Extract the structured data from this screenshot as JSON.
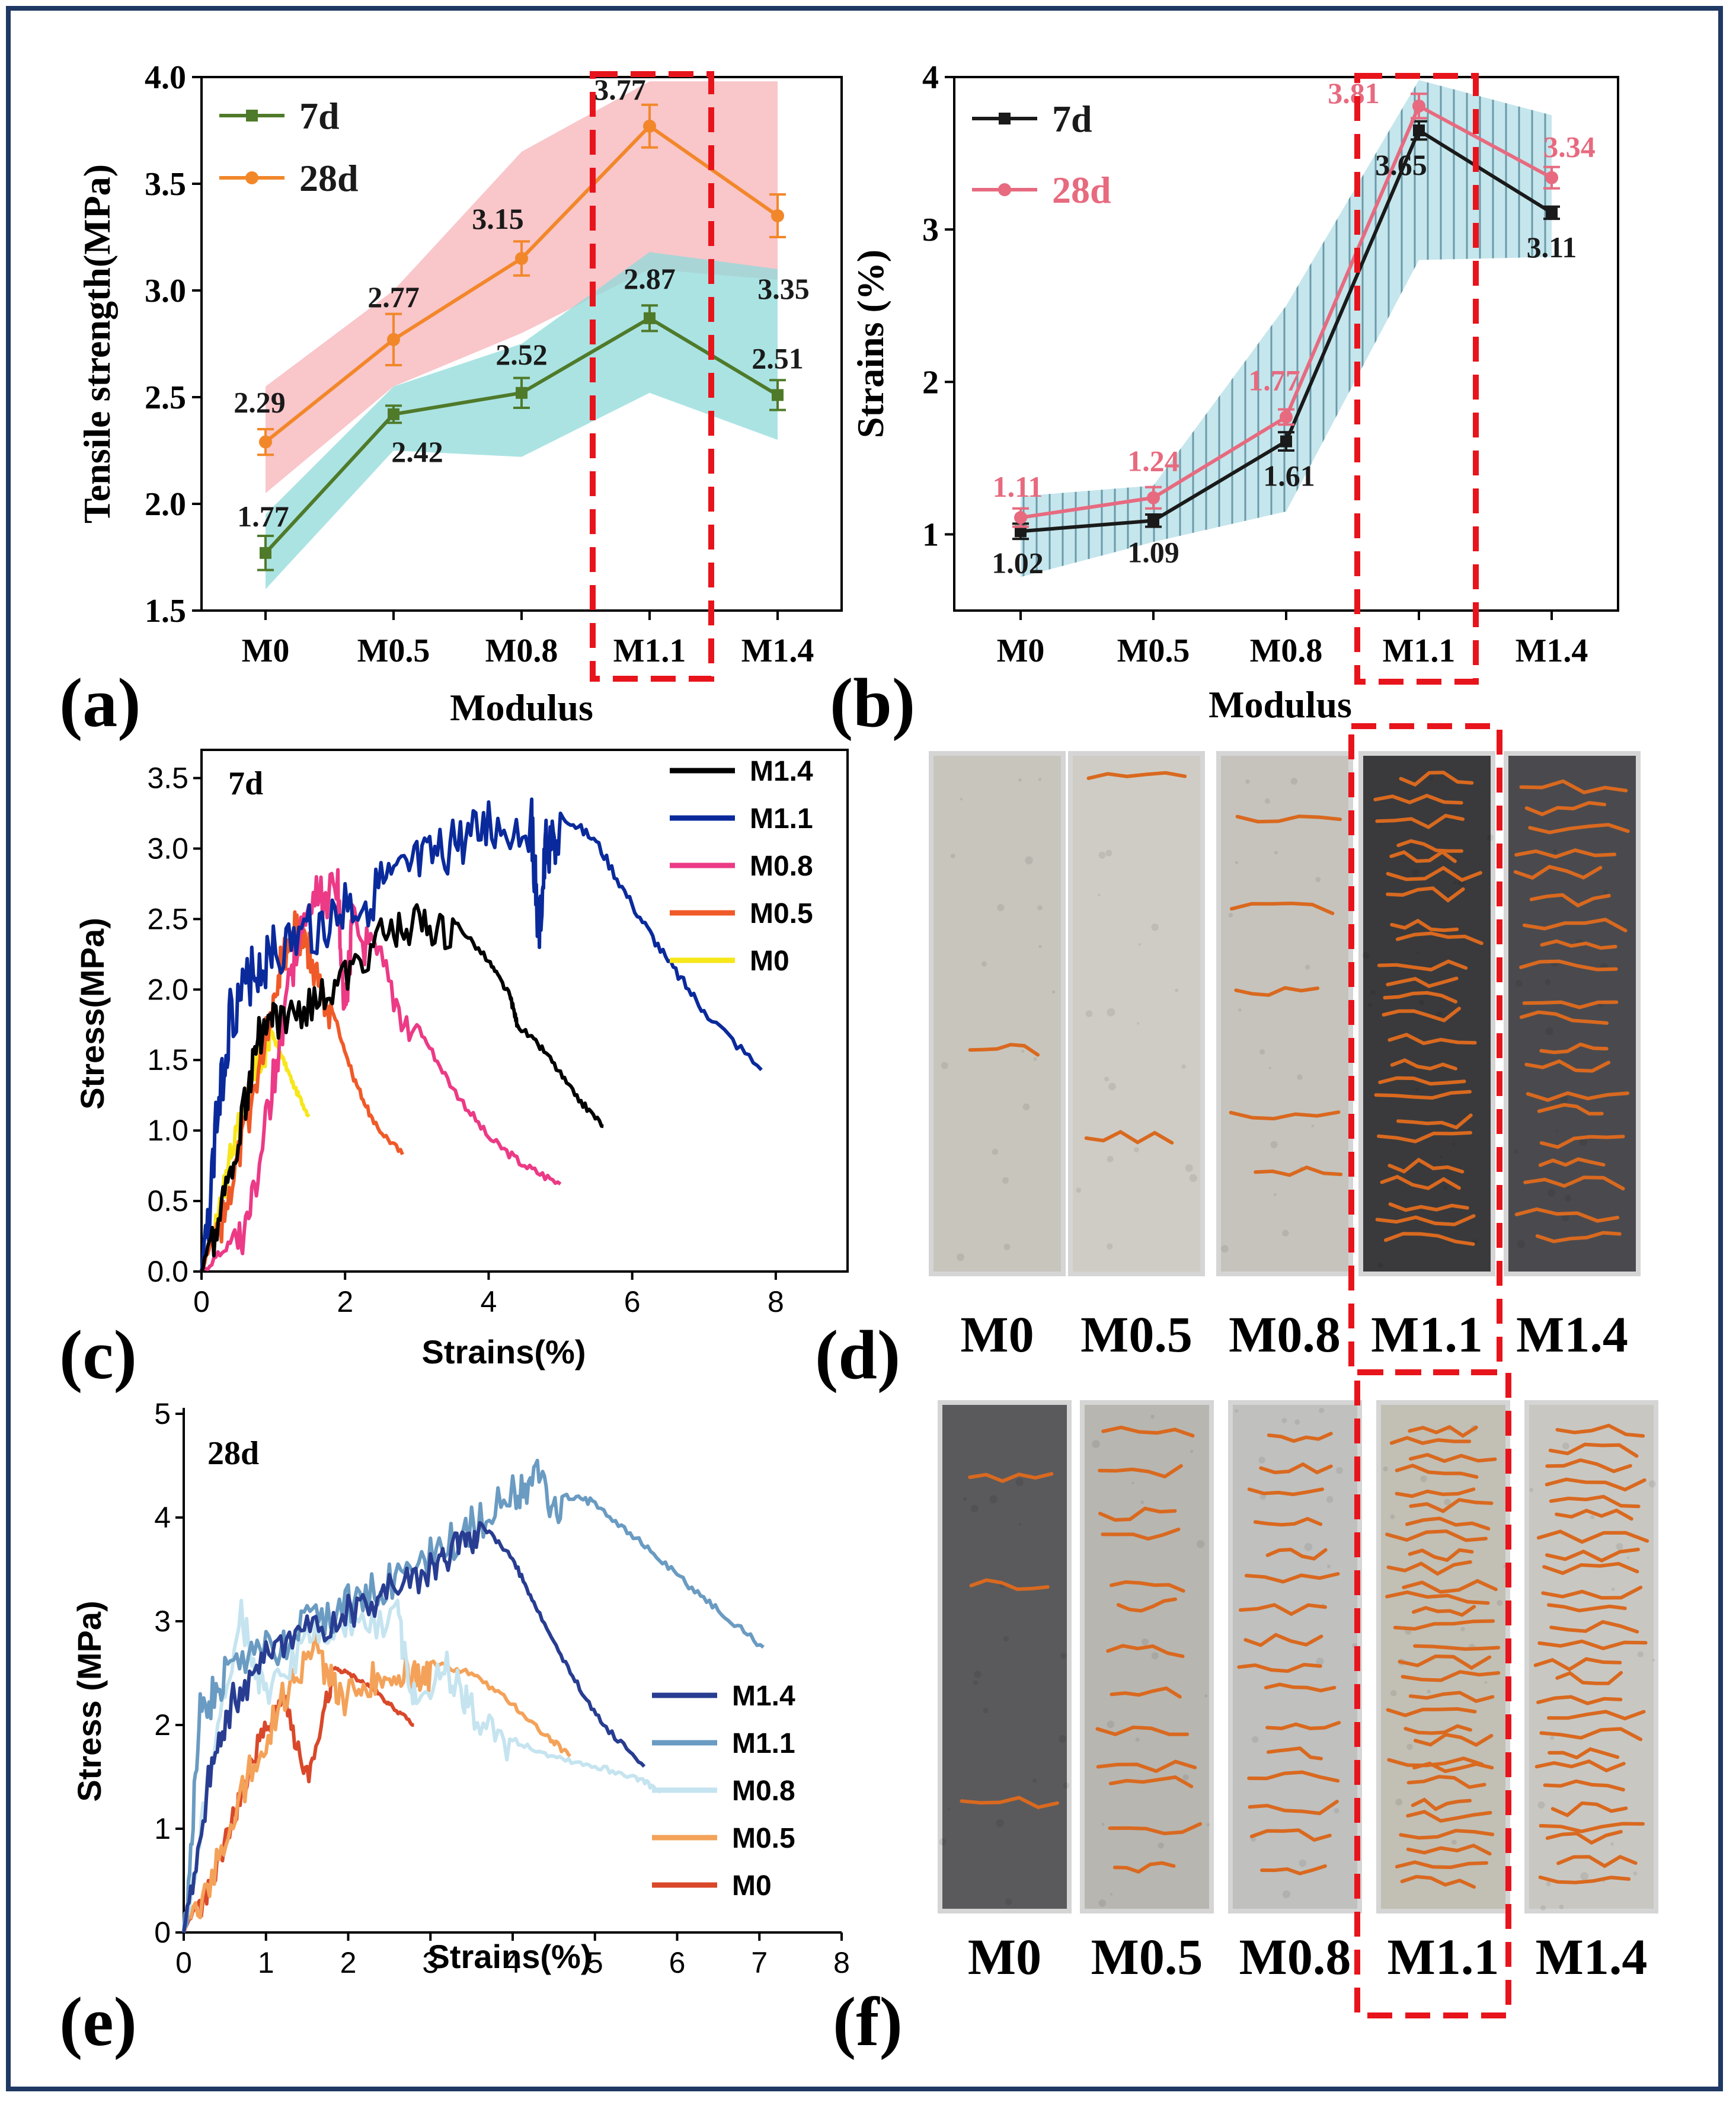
{
  "colors": {
    "d7_a": "#4f7a2a",
    "d28_a": "#f2872a",
    "d7_b": "#1a1a1a",
    "d28_b": "#e76a7f",
    "band_pink": "#f7b3b8",
    "band_cyan": "#8fd9d9",
    "band_blue": "#aed6e2",
    "red_box": "#e8141c",
    "crack": "#d9691f",
    "border": "#1f3864"
  },
  "chart_data": [
    {
      "id": "a",
      "type": "line",
      "panel_label": "(a)",
      "xlabel": "Modulus",
      "ylabel": "Tensile strength(MPa)",
      "categories": [
        "M0",
        "M0.5",
        "M0.8",
        "M1.1",
        "M1.4"
      ],
      "ylim": [
        1.5,
        4.0
      ],
      "yticks": [
        1.5,
        2.0,
        2.5,
        3.0,
        3.5,
        4.0
      ],
      "ytick_labels": [
        "1.5",
        "2.0",
        "2.5",
        "3.0",
        "3.5",
        "4.0"
      ],
      "legend": [
        "7d",
        "28d"
      ],
      "series": [
        {
          "name": "7d",
          "values": [
            1.77,
            2.42,
            2.52,
            2.87,
            2.51
          ],
          "errors": [
            0.08,
            0.04,
            0.07,
            0.06,
            0.07
          ],
          "labels": [
            "1.77",
            "2.42",
            "2.52",
            "2.87",
            "2.51"
          ],
          "band_low": [
            1.6,
            2.25,
            2.22,
            2.52,
            2.3
          ],
          "band_high": [
            1.95,
            2.55,
            2.75,
            3.18,
            3.1
          ]
        },
        {
          "name": "28d",
          "values": [
            2.29,
            2.77,
            3.15,
            3.77,
            3.35
          ],
          "errors": [
            0.06,
            0.12,
            0.08,
            0.1,
            0.1
          ],
          "labels": [
            "2.29",
            "2.77",
            "3.15",
            "3.77",
            "3.35"
          ],
          "band_low": [
            2.05,
            2.55,
            2.8,
            3.1,
            3.05
          ],
          "band_high": [
            2.55,
            3.0,
            3.65,
            3.98,
            3.98
          ]
        }
      ],
      "highlight": "M1.1"
    },
    {
      "id": "b",
      "type": "line",
      "panel_label": "(b)",
      "xlabel": "Modulus",
      "ylabel": "Strains (%)",
      "categories": [
        "M0",
        "M0.5",
        "M0.8",
        "M1.1",
        "M1.4"
      ],
      "ylim": [
        0.5,
        4.0
      ],
      "yticks": [
        1,
        2,
        3,
        4
      ],
      "ytick_labels": [
        "1",
        "2",
        "3",
        "4"
      ],
      "legend": [
        "7d",
        "28d"
      ],
      "series": [
        {
          "name": "7d",
          "values": [
            1.02,
            1.09,
            1.61,
            3.65,
            3.11
          ],
          "errors": [
            0.05,
            0.04,
            0.06,
            0.06,
            0.04
          ],
          "labels": [
            "1.02",
            "1.09",
            "1.61",
            "3.65",
            "3.11"
          ]
        },
        {
          "name": "28d",
          "values": [
            1.11,
            1.24,
            1.77,
            3.81,
            3.34
          ],
          "errors": [
            0.06,
            0.07,
            0.05,
            0.08,
            0.07
          ],
          "labels": [
            "1.11",
            "1.24",
            "1.77",
            "3.81",
            "3.34"
          ]
        }
      ],
      "band_low": [
        0.72,
        0.95,
        1.15,
        2.8,
        2.82
      ],
      "band_high": [
        1.25,
        1.32,
        2.5,
        3.98,
        3.75
      ],
      "highlight": "M1.1"
    },
    {
      "id": "c",
      "type": "line",
      "panel_label": "(c)",
      "title": "7d",
      "xlabel": "Strains(%)",
      "ylabel": "Stress(MPa)",
      "xlim": [
        0,
        9
      ],
      "ylim": [
        0,
        3.7
      ],
      "xticks": [
        0,
        2,
        4,
        6,
        8
      ],
      "xtick_labels": [
        "0",
        "2",
        "4",
        "6",
        "8"
      ],
      "yticks": [
        0,
        0.5,
        1.0,
        1.5,
        2.0,
        2.5,
        3.0,
        3.5
      ],
      "ytick_labels": [
        "0.0",
        "0.5",
        "1.0",
        "1.5",
        "2.0",
        "2.5",
        "3.0",
        "3.5"
      ],
      "series": [
        {
          "name": "M1.4",
          "color": "#000000",
          "x": [
            0,
            0.3,
            0.6,
            0.8,
            1.0,
            1.5,
            2.0,
            2.5,
            3.0,
            3.5,
            4.0,
            4.3,
            4.4,
            4.8,
            5.2,
            5.6
          ],
          "y": [
            0,
            0.6,
            1.3,
            1.8,
            1.9,
            2.0,
            2.2,
            2.5,
            2.6,
            2.5,
            2.2,
            1.95,
            1.75,
            1.55,
            1.25,
            1.03
          ],
          "jitter": 0.12
        },
        {
          "name": "M1.1",
          "color": "#0a2a9c",
          "x": [
            0,
            0.2,
            0.4,
            0.7,
            1.0,
            1.5,
            2.0,
            2.5,
            3.0,
            3.5,
            4.0,
            4.6,
            4.7,
            4.8,
            5.0,
            5.5,
            6.0,
            6.5,
            7.0,
            7.8
          ],
          "y": [
            0,
            1.2,
            2.0,
            2.3,
            2.45,
            2.6,
            2.75,
            2.9,
            3.05,
            3.2,
            3.33,
            3.35,
            2.55,
            3.2,
            3.25,
            3.05,
            2.6,
            2.2,
            1.85,
            1.43
          ],
          "jitter": 0.18
        },
        {
          "name": "M0.8",
          "color": "#ec3a86",
          "x": [
            0,
            0.4,
            0.7,
            1.0,
            1.3,
            1.6,
            1.9,
            2.0,
            2.1,
            2.5,
            3.0,
            3.5,
            4.0,
            4.5,
            5.0
          ],
          "y": [
            0,
            0.2,
            0.6,
            1.5,
            2.4,
            2.8,
            2.85,
            2.0,
            2.6,
            2.3,
            1.75,
            1.3,
            0.95,
            0.75,
            0.62
          ],
          "jitter": 0.15
        },
        {
          "name": "M0.5",
          "color": "#f05a28",
          "x": [
            0,
            0.3,
            0.6,
            0.9,
            1.1,
            1.3,
            1.5,
            1.8,
            2.1,
            2.4,
            2.8
          ],
          "y": [
            0,
            0.5,
            1.1,
            1.8,
            2.3,
            2.55,
            2.4,
            1.9,
            1.4,
            1.05,
            0.83
          ],
          "jitter": 0.12
        },
        {
          "name": "M0",
          "color": "#f7e61a",
          "x": [
            0,
            0.2,
            0.4,
            0.6,
            0.8,
            0.95,
            1.1,
            1.3,
            1.5
          ],
          "y": [
            0,
            0.4,
            0.9,
            1.3,
            1.6,
            1.72,
            1.55,
            1.3,
            1.1
          ],
          "jitter": 0.1
        }
      ]
    },
    {
      "id": "e",
      "type": "line",
      "panel_label": "(e)",
      "title": "28d",
      "xlabel": "Strains(%)",
      "ylabel": "Stress (MPa)",
      "xlim": [
        0,
        8
      ],
      "ylim": [
        0,
        5
      ],
      "xticks": [
        0,
        1,
        2,
        3,
        4,
        5,
        6,
        7,
        8
      ],
      "xtick_labels": [
        "0",
        "1",
        "2",
        "3",
        "4",
        "5",
        "6",
        "7",
        "8"
      ],
      "yticks": [
        0,
        1,
        2,
        3,
        4,
        5
      ],
      "ytick_labels": [
        "0",
        "1",
        "2",
        "3",
        "4",
        "5"
      ],
      "series": [
        {
          "name": "M1.4",
          "color": "#283d91",
          "x": [
            0,
            0.3,
            0.6,
            1.0,
            1.5,
            2.0,
            2.5,
            3.0,
            3.3,
            3.6,
            4.0,
            4.3,
            4.7,
            5.1,
            5.6
          ],
          "y": [
            0,
            1.6,
            2.4,
            2.8,
            3.05,
            3.25,
            3.45,
            3.65,
            3.85,
            3.95,
            3.6,
            3.1,
            2.5,
            2.0,
            1.6
          ],
          "jitter": 0.15
        },
        {
          "name": "M1.1",
          "color": "#6a9bc2",
          "x": [
            0,
            0.2,
            0.5,
            1.0,
            1.5,
            2.0,
            2.5,
            3.0,
            3.5,
            4.0,
            4.3,
            4.6,
            5.0,
            5.5,
            6.0,
            6.5,
            7.05
          ],
          "y": [
            0,
            2.3,
            2.65,
            2.9,
            3.15,
            3.35,
            3.55,
            3.8,
            4.1,
            4.4,
            4.55,
            4.2,
            4.15,
            3.8,
            3.45,
            3.1,
            2.75
          ],
          "jitter": 0.18
        },
        {
          "name": "M0.8",
          "color": "#c5e4f0",
          "x": [
            0,
            0.3,
            0.7,
            1.0,
            1.5,
            2.0,
            2.6,
            2.8,
            3.2,
            3.5,
            4.0,
            4.5,
            5.0,
            5.5,
            5.8
          ],
          "y": [
            0,
            1.6,
            3.2,
            2.4,
            3.0,
            3.1,
            3.2,
            2.4,
            2.7,
            2.3,
            1.85,
            1.7,
            1.6,
            1.5,
            1.35
          ],
          "jitter": 0.15
        },
        {
          "name": "M0.5",
          "color": "#f4a259",
          "x": [
            0,
            0.4,
            0.8,
            1.2,
            1.6,
            1.9,
            2.3,
            2.7,
            3.0,
            3.5,
            4.0,
            4.4,
            4.7
          ],
          "y": [
            0,
            0.8,
            1.7,
            2.4,
            2.9,
            2.4,
            2.6,
            2.65,
            2.6,
            2.5,
            2.2,
            1.9,
            1.7
          ],
          "jitter": 0.15
        },
        {
          "name": "M0",
          "color": "#d9482a",
          "x": [
            0,
            0.3,
            0.6,
            0.9,
            1.2,
            1.5,
            1.8,
            2.0,
            2.3,
            2.5,
            2.8
          ],
          "y": [
            0,
            0.5,
            1.2,
            1.9,
            2.4,
            1.6,
            2.55,
            2.5,
            2.35,
            2.2,
            2.0
          ],
          "jitter": 0.1
        }
      ]
    }
  ],
  "photos": [
    {
      "id": "d",
      "panel_label": "(d)",
      "labels": [
        "M0",
        "M0.5",
        "M0.8",
        "M1.1",
        "M1.4"
      ],
      "tones": [
        "#c8c5bd",
        "#cfccc5",
        "#c6c3bd",
        "#3a3a3c",
        "#4a4a4e"
      ],
      "cracks": [
        1,
        2,
        5,
        24,
        20
      ]
    },
    {
      "id": "f",
      "panel_label": "(f)",
      "labels": [
        "M0",
        "M0.5",
        "M0.8",
        "M1.1",
        "M1.4"
      ],
      "tones": [
        "#5a5a5c",
        "#b8b6b0",
        "#c0c0be",
        "#c2bfb5",
        "#c9c7c2"
      ],
      "cracks": [
        3,
        13,
        16,
        30,
        26
      ]
    }
  ]
}
